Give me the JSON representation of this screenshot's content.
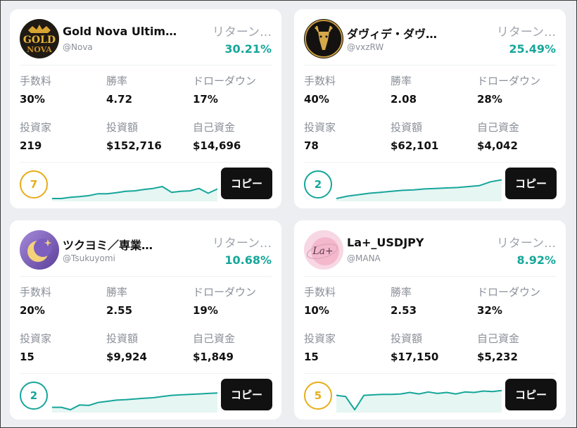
{
  "colors": {
    "accent": "#16a69a",
    "rank_gold": "#e7ad19",
    "rank_teal": "#16a69a",
    "button": "#111111"
  },
  "traders": [
    {
      "name": "Gold Nova Ultim…",
      "handle": "@Nova",
      "return_label": "リターン…",
      "return_value": "30.21%",
      "avatar_icon": "gold-nova-logo-icon",
      "stats": [
        {
          "label": "手数料",
          "value": "30%"
        },
        {
          "label": "勝率",
          "value": "4.72"
        },
        {
          "label": "ドローダウン",
          "value": "17%"
        },
        {
          "label": "投資家",
          "value": "219"
        },
        {
          "label": "投資額",
          "value": "$152,716"
        },
        {
          "label": "自己資金",
          "value": "$14,696"
        }
      ],
      "rank": "7",
      "rank_color": "#e7ad19",
      "copy_label": "コピー",
      "trend": [
        0.0,
        0.0,
        0.05,
        0.08,
        0.12,
        0.2,
        0.2,
        0.24,
        0.3,
        0.32,
        0.38,
        0.42,
        0.5,
        0.26,
        0.3,
        0.32,
        0.42,
        0.22,
        0.4
      ]
    },
    {
      "name": "ダヴィデ・ダヴ…",
      "handle": "@vxzRW",
      "return_label": "リターン…",
      "return_value": "25.49%",
      "avatar_icon": "deer-head-icon",
      "stats": [
        {
          "label": "手数料",
          "value": "40%"
        },
        {
          "label": "勝率",
          "value": "2.08"
        },
        {
          "label": "ドローダウン",
          "value": "28%"
        },
        {
          "label": "投資家",
          "value": "78"
        },
        {
          "label": "投資額",
          "value": "$62,101"
        },
        {
          "label": "自己資金",
          "value": "$4,042"
        }
      ],
      "rank": "2",
      "rank_color": "#16a69a",
      "copy_label": "コピー",
      "trend": [
        0.0,
        0.1,
        0.16,
        0.22,
        0.26,
        0.3,
        0.34,
        0.36,
        0.4,
        0.42,
        0.44,
        0.46,
        0.5,
        0.54,
        0.7,
        0.78
      ]
    },
    {
      "name": "ツクヨミ／専業…",
      "handle": "@Tsukuyomi",
      "return_label": "リターン…",
      "return_value": "10.68%",
      "avatar_icon": "crescent-moon-icon",
      "stats": [
        {
          "label": "手数料",
          "value": "20%"
        },
        {
          "label": "勝率",
          "value": "2.55"
        },
        {
          "label": "ドローダウン",
          "value": "19%"
        },
        {
          "label": "投資家",
          "value": "15"
        },
        {
          "label": "投資額",
          "value": "$9,924"
        },
        {
          "label": "自己資金",
          "value": "$1,849"
        }
      ],
      "rank": "2",
      "rank_color": "#16a69a",
      "copy_label": "コピー",
      "trend": [
        0.1,
        0.1,
        0.0,
        0.2,
        0.18,
        0.3,
        0.35,
        0.4,
        0.42,
        0.45,
        0.48,
        0.5,
        0.55,
        0.6,
        0.62,
        0.64,
        0.66,
        0.68,
        0.7
      ]
    },
    {
      "name": "La+_USDJPY",
      "handle": "@MANA",
      "return_label": "リターン…",
      "return_value": "8.92%",
      "avatar_icon": "la-plus-logo-icon",
      "stats": [
        {
          "label": "手数料",
          "value": "10%"
        },
        {
          "label": "勝率",
          "value": "2.53"
        },
        {
          "label": "ドローダウン",
          "value": "32%"
        },
        {
          "label": "投資家",
          "value": "15"
        },
        {
          "label": "投資額",
          "value": "$17,150"
        },
        {
          "label": "自己資金",
          "value": "$5,232"
        }
      ],
      "rank": "5",
      "rank_color": "#e7ad19",
      "copy_label": "コピー",
      "trend": [
        0.6,
        0.55,
        0.0,
        0.6,
        0.62,
        0.64,
        0.64,
        0.66,
        0.72,
        0.66,
        0.74,
        0.68,
        0.72,
        0.66,
        0.74,
        0.72,
        0.78,
        0.76,
        0.8
      ]
    }
  ]
}
